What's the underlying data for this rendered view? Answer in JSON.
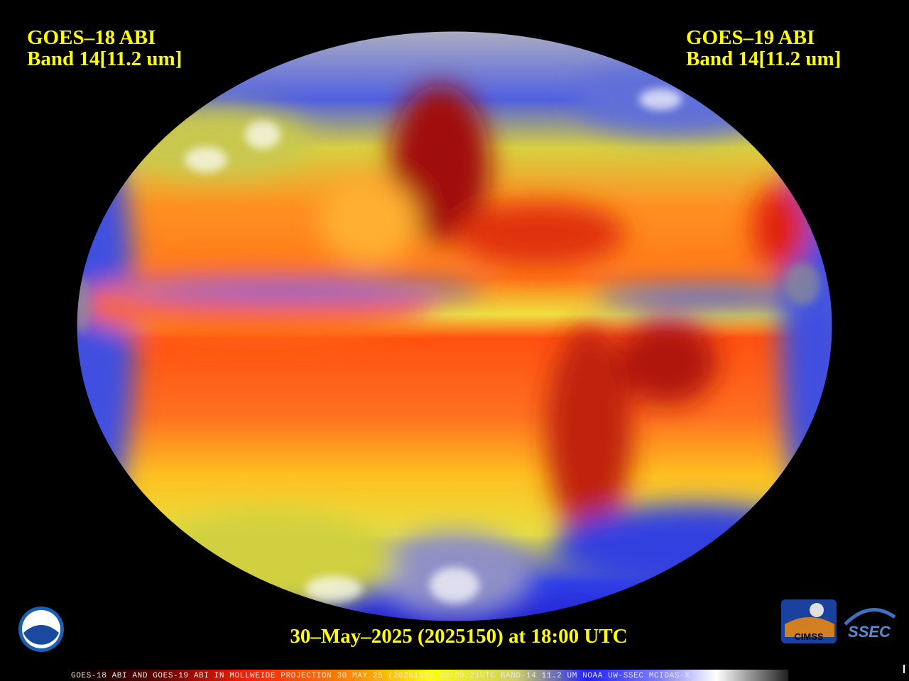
{
  "header": {
    "left": {
      "satellite": "GOES–18 ABI",
      "band": "Band 14[11.2 um]"
    },
    "right": {
      "satellite": "GOES–19 ABI",
      "band": "Band 14[11.2 um]"
    }
  },
  "timestamp": "30–May–2025 (2025150) at 18:00 UTC",
  "footer": "GOES-18 ABI AND GOES-19 ABI IN MOLLWEIDE PROJECTION 30 MAY 25 (2025150) 18:00:21UTC BAND-14 11.2 UM NOAA UW-SSEC MCIDAS-X",
  "logos": {
    "noaa": "NOAA",
    "cimss": "CIMSS",
    "ssec": "SSEC"
  }
}
